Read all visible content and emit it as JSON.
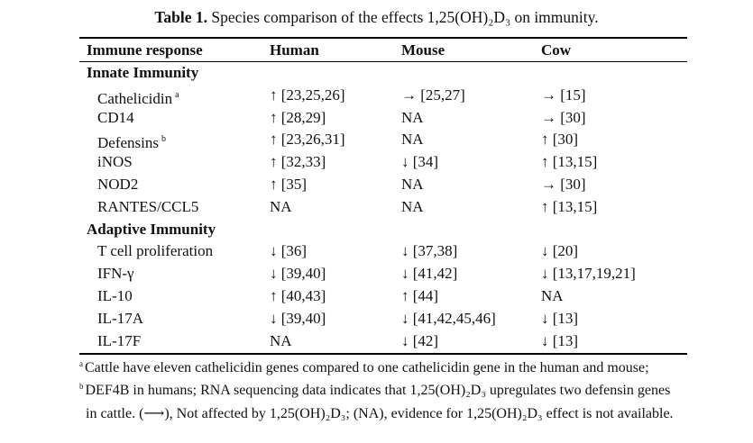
{
  "caption": {
    "label": "Table 1.",
    "text": "Species comparison of the effects 1,25(OH)₂D₃ on immunity."
  },
  "columns": [
    "Immune response",
    "Human",
    "Mouse",
    "Cow"
  ],
  "sections": [
    {
      "title": "Innate Immunity",
      "rows": [
        {
          "name": "Cathelicidin",
          "note": "a",
          "human": "↑ [23,25,26]",
          "mouse": "→ [25,27]",
          "cow": "→ [15]"
        },
        {
          "name": "CD14",
          "note": "",
          "human": "↑ [28,29]",
          "mouse": "NA",
          "cow": "→ [30]"
        },
        {
          "name": "Defensins",
          "note": "b",
          "human": "↑ [23,26,31]",
          "mouse": "NA",
          "cow": "↑ [30]"
        },
        {
          "name": "iNOS",
          "note": "",
          "human": "↑ [32,33]",
          "mouse": "↓ [34]",
          "cow": "↑ [13,15]"
        },
        {
          "name": "NOD2",
          "note": "",
          "human": "↑ [35]",
          "mouse": "NA",
          "cow": "→ [30]"
        },
        {
          "name": "RANTES/CCL5",
          "note": "",
          "human": "NA",
          "mouse": "NA",
          "cow": "↑ [13,15]"
        }
      ]
    },
    {
      "title": "Adaptive Immunity",
      "rows": [
        {
          "name": "T cell proliferation",
          "note": "",
          "human": "↓ [36]",
          "mouse": "↓ [37,38]",
          "cow": "↓ [20]"
        },
        {
          "name": "IFN-γ",
          "note": "",
          "human": "↓ [39,40]",
          "mouse": "↓ [41,42]",
          "cow": "↓ [13,17,19,21]"
        },
        {
          "name": "IL-10",
          "note": "",
          "human": "↑ [40,43]",
          "mouse": "↑ [44]",
          "cow": "NA"
        },
        {
          "name": "IL-17A",
          "note": "",
          "human": "↓ [39,40]",
          "mouse": "↓ [41,42,45,46]",
          "cow": "↓ [13]"
        },
        {
          "name": "IL-17F",
          "note": "",
          "human": "NA",
          "mouse": "↓ [42]",
          "cow": "↓ [13]"
        }
      ]
    }
  ],
  "footnotes": [
    {
      "mark": "a",
      "text": "Cattle have eleven cathelicidin genes compared to one cathelicidin gene in the human and mouse;"
    },
    {
      "mark": "b",
      "text": "DEF4B in humans; RNA sequencing data indicates that 1,25(OH)₂D₃ upregulates two defensin genes"
    },
    {
      "mark": "",
      "text": "in cattle. (⟶), Not affected by 1,25(OH)₂D₃; (NA), evidence for 1,25(OH)₂D₃ effect is not available."
    }
  ]
}
